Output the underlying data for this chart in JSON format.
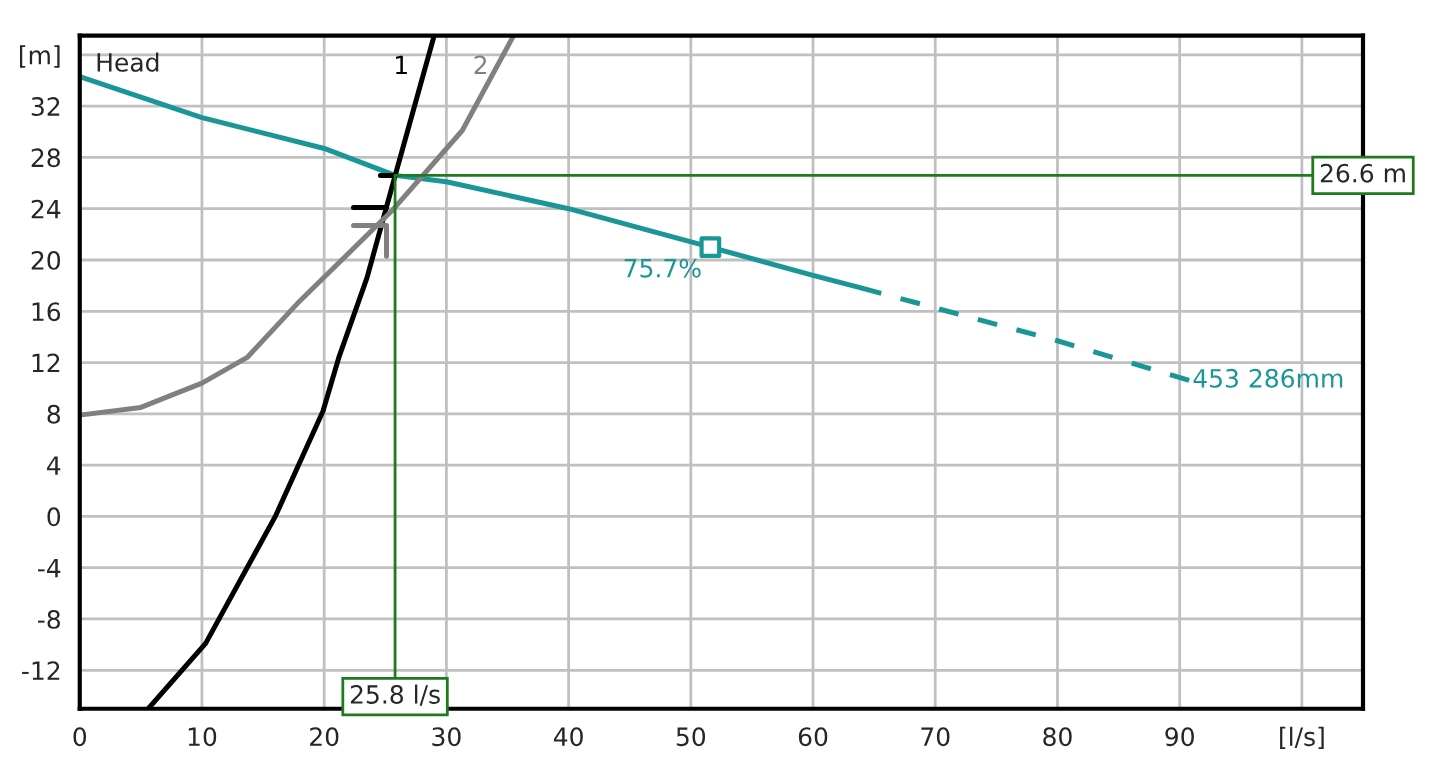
{
  "chart_data": {
    "type": "line",
    "xlim": [
      0,
      105
    ],
    "ylim": [
      -15,
      37.5
    ],
    "xticks": [
      0,
      10,
      20,
      30,
      40,
      50,
      60,
      70,
      80,
      90,
      {
        "value": 100,
        "label": "[l/s]"
      }
    ],
    "yticks": [
      -12,
      -8,
      -4,
      0,
      4,
      8,
      12,
      16,
      20,
      24,
      28,
      32,
      {
        "value": 36,
        "label": "[m]"
      }
    ],
    "grid": true,
    "legend": false,
    "series": [
      {
        "color": "#1a9696",
        "line_style": "solid",
        "x": [
          0,
          10,
          20,
          25.8,
          30,
          40,
          51.6,
          60,
          64
        ],
        "values": [
          34.3,
          31.1,
          28.7,
          26.6,
          26.1,
          24.0,
          21.0,
          18.8,
          17.8
        ]
      },
      {
        "color": "#1a9696",
        "line_style": "dashed",
        "x": [
          64,
          80,
          90.8
        ],
        "values": [
          17.8,
          13.7,
          10.6
        ]
      },
      {
        "type": "scatter",
        "color": "#1a9696",
        "marker": "square",
        "x": [
          51.6
        ],
        "values": [
          21.0
        ]
      },
      {
        "name": "1",
        "color": "#000000",
        "line_style": "solid",
        "x": [
          5.6,
          10.3,
          16.0,
          19.9,
          21.2,
          23.5,
          25.9,
          29.0
        ],
        "values": [
          -15,
          -9.9,
          0,
          8.2,
          12.4,
          18.6,
          26.9,
          37.5
        ]
      },
      {
        "name": "2",
        "color": "#808080",
        "line_style": "solid",
        "x": [
          0,
          5,
          10,
          13.7,
          17.8,
          25.5,
          31.3,
          35.5
        ],
        "values": [
          7.9,
          8.5,
          10.4,
          12.4,
          16.6,
          23.8,
          30.1,
          37.5
        ]
      },
      {
        "color": "#000000",
        "line_style": "solid",
        "x": [
          22.4,
          25.1
        ],
        "values": [
          24.1,
          24.1
        ]
      },
      {
        "color": "#000000",
        "line_style": "solid",
        "x": [
          24.6,
          25.8
        ],
        "values": [
          26.6,
          26.6
        ]
      },
      {
        "color": "#808080",
        "line_style": "solid",
        "x": [
          22.4,
          25.1,
          25.1
        ],
        "values": [
          22.7,
          22.7,
          20.3
        ]
      }
    ],
    "ref_lines": [
      {
        "axis": "x",
        "value": 25.8,
        "label": "25.8 l/s",
        "color": "#1e7a1e"
      },
      {
        "axis": "y",
        "value": 26.6,
        "label": "26.6 m",
        "color": "#1e7a1e"
      }
    ],
    "annotations": [
      "Head",
      {
        "text": "75.7%",
        "x": 51.6,
        "y": 21.0
      },
      {
        "text": "453 286mm",
        "x": 90.8,
        "y": 10.6
      }
    ]
  }
}
